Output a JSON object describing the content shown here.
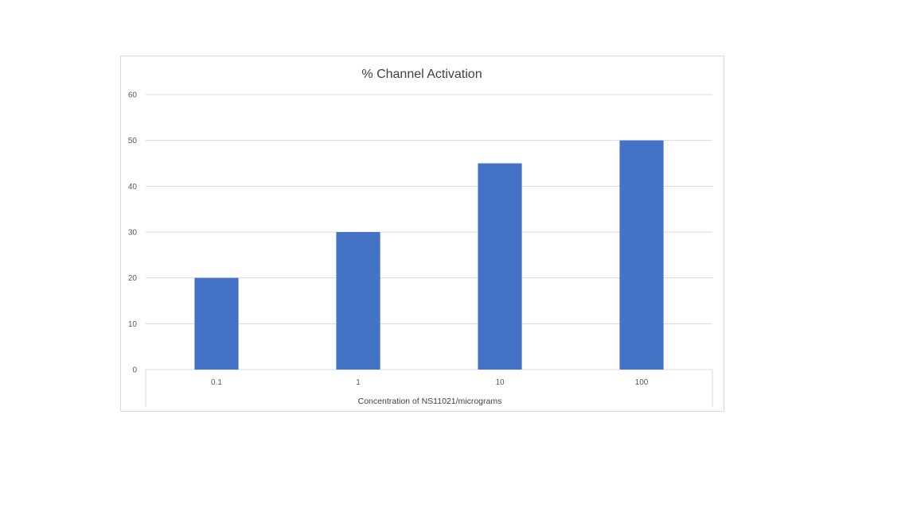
{
  "chart_data": {
    "type": "bar",
    "title": "% Channel Activation",
    "xlabel": "Concentration of NS11021/micrograms",
    "ylabel": "",
    "categories": [
      "0.1",
      "1",
      "10",
      "100"
    ],
    "values": [
      20,
      30,
      45,
      50
    ],
    "ylim": [
      0,
      60
    ],
    "yticks": [
      0,
      10,
      20,
      30,
      40,
      50,
      60
    ],
    "grid": true,
    "legend": "none",
    "bar_color": "#4472C4"
  }
}
